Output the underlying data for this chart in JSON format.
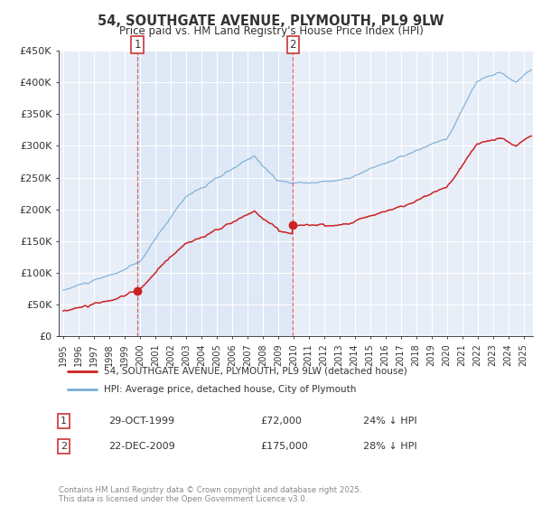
{
  "title": "54, SOUTHGATE AVENUE, PLYMOUTH, PL9 9LW",
  "subtitle": "Price paid vs. HM Land Registry's House Price Index (HPI)",
  "background_color": "#ffffff",
  "plot_bg_color": "#e8eef8",
  "grid_color": "#ffffff",
  "hpi_color": "#7aadd4",
  "price_color": "#cc2222",
  "ylim": [
    0,
    450000
  ],
  "yticks": [
    0,
    50000,
    100000,
    150000,
    200000,
    250000,
    300000,
    350000,
    400000,
    450000
  ],
  "ytick_labels": [
    "£0",
    "£50K",
    "£100K",
    "£150K",
    "£200K",
    "£250K",
    "£300K",
    "£350K",
    "£400K",
    "£450K"
  ],
  "xlim_start": 1994.7,
  "xlim_end": 2025.6,
  "sale1_x": 1999.83,
  "sale1_y": 72000,
  "sale1_label": "1",
  "sale1_date": "29-OCT-1999",
  "sale1_price": "£72,000",
  "sale1_hpi": "24% ↓ HPI",
  "sale2_x": 2009.97,
  "sale2_y": 175000,
  "sale2_label": "2",
  "sale2_date": "22-DEC-2009",
  "sale2_price": "£175,000",
  "sale2_hpi": "28% ↓ HPI",
  "legend_line1": "54, SOUTHGATE AVENUE, PLYMOUTH, PL9 9LW (detached house)",
  "legend_line2": "HPI: Average price, detached house, City of Plymouth",
  "footer": "Contains HM Land Registry data © Crown copyright and database right 2025.\nThis data is licensed under the Open Government Licence v3.0."
}
